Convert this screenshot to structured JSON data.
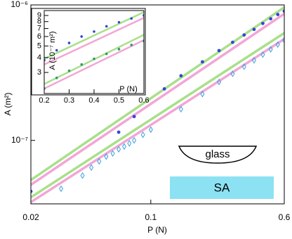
{
  "chart_data": [
    {
      "type": "scatter",
      "xlabel": "P (N)",
      "ylabel": "A (m²)",
      "xscale": "log",
      "yscale": "log",
      "xlim": [
        0.02,
        0.6
      ],
      "ylim": [
        3.4e-08,
        1e-06
      ],
      "xticks": [
        0.02,
        0.1,
        0.6
      ],
      "yticks": [
        {
          "value": 1e-07,
          "label": "10⁻⁷"
        },
        {
          "value": 1e-06,
          "label": "10⁻⁶"
        }
      ],
      "annotations": [
        "glass",
        "SA"
      ],
      "series": [
        {
          "style": "line",
          "color": "#a8e08a",
          "x": [
            0.02,
            0.6
          ],
          "values": [
            5.1e-08,
            9.6e-07
          ]
        },
        {
          "style": "line",
          "color": "#f2a6d6",
          "x": [
            0.02,
            0.6
          ],
          "values": [
            4.7e-08,
            8.6e-07
          ]
        },
        {
          "style": "line",
          "color": "#a8e08a",
          "x": [
            0.02,
            0.6
          ],
          "values": [
            3.8e-08,
            6.2e-07
          ]
        },
        {
          "style": "line",
          "color": "#f2a6d6",
          "x": [
            0.02,
            0.6
          ],
          "values": [
            3.5e-08,
            5.6e-07
          ]
        },
        {
          "style": "dot",
          "color": "#3347d6",
          "x": [
            0.02,
            0.065,
            0.08,
            0.12,
            0.15,
            0.2,
            0.25,
            0.3,
            0.35,
            0.4,
            0.45,
            0.5,
            0.55,
            0.6
          ],
          "values": [
            4.2e-08,
            1.15e-07,
            1.5e-07,
            2.4e-07,
            3e-07,
            3.8e-07,
            4.6e-07,
            5.3e-07,
            6e-07,
            6.6e-07,
            7.3e-07,
            7.9e-07,
            8.5e-07,
            9e-07
          ]
        },
        {
          "style": "diamond",
          "color": "#3aa0e0",
          "x": [
            0.03,
            0.04,
            0.045,
            0.05,
            0.055,
            0.06,
            0.065,
            0.07,
            0.075,
            0.08,
            0.09,
            0.1,
            0.15,
            0.2,
            0.25,
            0.3,
            0.35,
            0.4,
            0.45,
            0.5,
            0.55,
            0.6
          ],
          "values": [
            4.4e-08,
            5.5e-08,
            6.3e-08,
            7e-08,
            7.6e-08,
            8e-08,
            8.6e-08,
            9e-08,
            9.5e-08,
            1e-07,
            1.1e-07,
            1.2e-07,
            1.7e-07,
            2.2e-07,
            2.7e-07,
            3.1e-07,
            3.5e-07,
            3.9e-07,
            4.3e-07,
            4.7e-07,
            5.1e-07,
            5.5e-07
          ]
        }
      ]
    },
    {
      "type": "scatter",
      "xlabel": "P (N)",
      "ylabel": "A (10⁻⁷ m²)",
      "xscale": "linear",
      "yscale": "log",
      "xlim": [
        0.2,
        0.6
      ],
      "ylim": [
        2.0,
        9.9
      ],
      "xticks": [
        0.2,
        0.3,
        0.4,
        0.5,
        0.6
      ],
      "yticks": [
        3,
        4,
        5,
        6,
        7,
        8,
        9
      ],
      "series": [
        {
          "style": "line",
          "color": "#a8e08a",
          "x": [
            0.2,
            0.6
          ],
          "values": [
            3.9,
            9.6
          ]
        },
        {
          "style": "line",
          "color": "#f2a6d6",
          "x": [
            0.2,
            0.6
          ],
          "values": [
            3.5,
            8.6
          ]
        },
        {
          "style": "line",
          "color": "#a8e08a",
          "x": [
            0.2,
            0.6
          ],
          "values": [
            2.4,
            6.2
          ]
        },
        {
          "style": "line",
          "color": "#f2a6d6",
          "x": [
            0.2,
            0.6
          ],
          "values": [
            2.2,
            5.6
          ]
        },
        {
          "style": "dot",
          "color": "#3347d6",
          "x": [
            0.2,
            0.25,
            0.3,
            0.35,
            0.4,
            0.45,
            0.5,
            0.55,
            0.6
          ],
          "values": [
            3.8,
            4.6,
            5.3,
            6.0,
            6.6,
            7.3,
            7.9,
            8.5,
            9.0
          ]
        },
        {
          "style": "dot",
          "color": "#2a9a70",
          "x": [
            0.2,
            0.25,
            0.3,
            0.35,
            0.4,
            0.45,
            0.5,
            0.55,
            0.6
          ],
          "values": [
            2.2,
            2.7,
            3.1,
            3.5,
            3.9,
            4.3,
            4.7,
            5.1,
            5.5
          ]
        }
      ]
    }
  ]
}
